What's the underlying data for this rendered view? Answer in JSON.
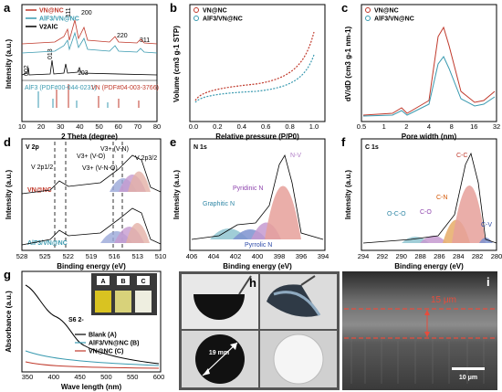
{
  "panels": {
    "a": {
      "letter": "a",
      "legend": [
        "VN@NC",
        "AlF3/VN@NC",
        "V2AlC"
      ],
      "colors": [
        "#c0392b",
        "#3a9ab0",
        "#000000"
      ],
      "xlabel": "2 Theta (degree)",
      "ylabel": "Intensity (a.u.)",
      "xticks": [
        "10",
        "20",
        "30",
        "40",
        "50",
        "60",
        "70",
        "80"
      ],
      "peak_labels": [
        "111",
        "200",
        "220",
        "311",
        "013",
        "002",
        "103"
      ],
      "refs": [
        "AlF3 (PDF#00-044-0231)",
        "VN (PDF#04-003-3766)"
      ]
    },
    "b": {
      "letter": "b",
      "legend": [
        "VN@NC",
        "AlF3/VN@NC"
      ],
      "xlabel": "Relative pressure (P/P0)",
      "ylabel": "Volume (cm3 g-1 STP)",
      "xticks": [
        "0.0",
        "0.2",
        "0.4",
        "0.6",
        "0.8",
        "1.0"
      ]
    },
    "c": {
      "letter": "c",
      "legend": [
        "VN@NC",
        "AlF3/VN@NC"
      ],
      "xlabel": "Pore width (nm)",
      "ylabel": "dV/dD (cm3 g-1 nm-1)",
      "xticks": [
        "0.5",
        "1",
        "2",
        "4",
        "8",
        "16",
        "32"
      ]
    },
    "d": {
      "letter": "d",
      "title": "V 2p",
      "labels": [
        "V 2p1/2",
        "V 2p3/2",
        "V3+ (V-O)",
        "V3+ (V-N-O)",
        "V3+ (V-N)"
      ],
      "traces": [
        "VN@NC",
        "AlF3/VN@NC"
      ],
      "xlabel": "Binding energy (eV)",
      "ylabel": "Intensity (a.u.)",
      "xticks": [
        "528",
        "525",
        "522",
        "519",
        "516",
        "513",
        "510"
      ]
    },
    "e": {
      "letter": "e",
      "title": "N 1s",
      "labels": [
        "N-V",
        "Pyridinic N",
        "Graphitic N",
        "Pyrrolic N"
      ],
      "xlabel": "Binding energy (eV)",
      "ylabel": "Intensity (a.u.)",
      "xticks": [
        "406",
        "404",
        "402",
        "400",
        "398",
        "396",
        "394"
      ]
    },
    "f": {
      "letter": "f",
      "title": "C 1s",
      "labels": [
        "C-C",
        "C-N",
        "C-O",
        "O-C-O",
        "C-V"
      ],
      "xlabel": "Binding energy (eV)",
      "ylabel": "Intensity (a.u.)",
      "xticks": [
        "294",
        "292",
        "290",
        "288",
        "286",
        "284",
        "282",
        "280"
      ]
    },
    "g": {
      "letter": "g",
      "legend": [
        "Blank (A)",
        "AlF3/VN@NC (B)",
        "VN@NC (C)"
      ],
      "vial_labels": [
        "A",
        "B",
        "C"
      ],
      "annotation": "S6 2-",
      "xlabel": "Wave length (nm)",
      "ylabel": "Absorbance (a.u.)",
      "xticks": [
        "350",
        "400",
        "450",
        "500",
        "550",
        "600"
      ]
    },
    "h": {
      "letter": "h",
      "dimension": "19 mm"
    },
    "i": {
      "letter": "i",
      "thickness": "15 μm",
      "scalebar": "10 μm"
    }
  }
}
